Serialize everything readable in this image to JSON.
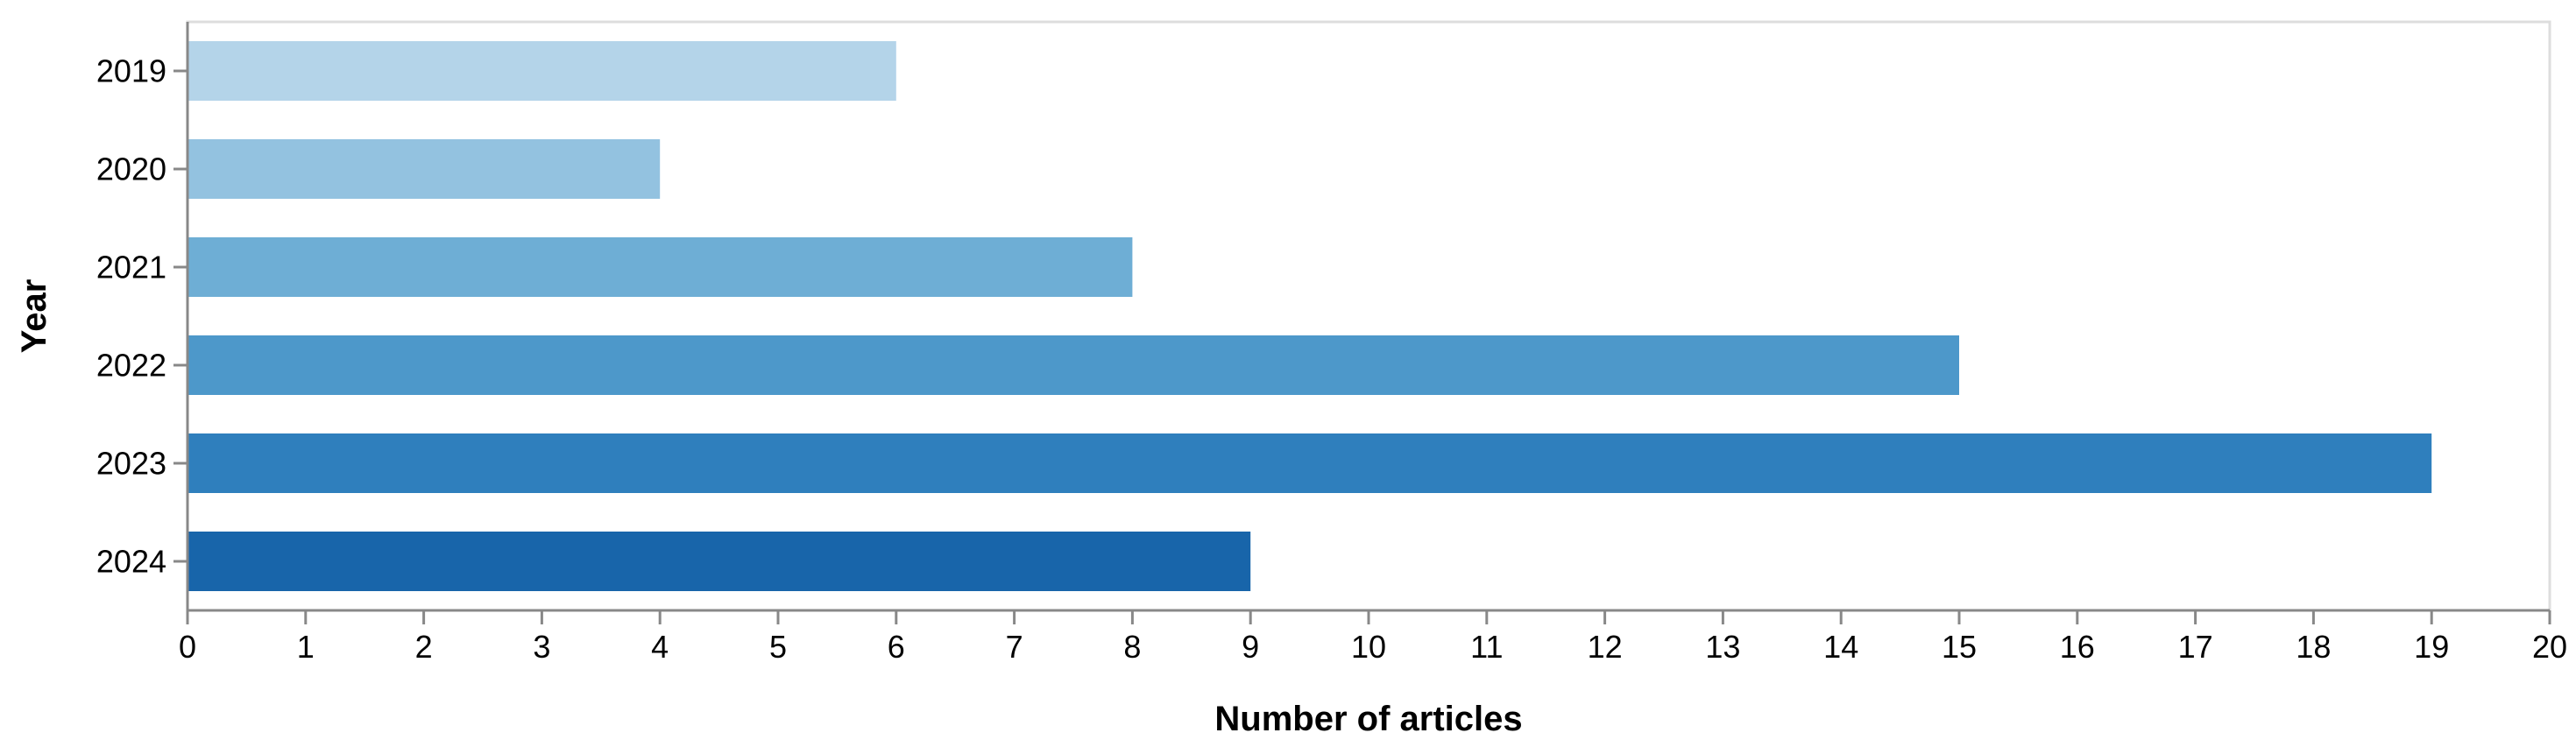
{
  "chart_data": {
    "type": "bar",
    "orientation": "horizontal",
    "categories": [
      "2019",
      "2020",
      "2021",
      "2022",
      "2023",
      "2024"
    ],
    "values": [
      6,
      4,
      8,
      15,
      19,
      9
    ],
    "colors": [
      "#b4d4e9",
      "#93c2e0",
      "#6eaed5",
      "#4d98ca",
      "#2f7fbd",
      "#1865aa"
    ],
    "xlabel": "Number of articles",
    "ylabel": "Year",
    "xlim": [
      0,
      20
    ],
    "xticks": [
      "0",
      "1",
      "2",
      "3",
      "4",
      "5",
      "6",
      "7",
      "8",
      "9",
      "10",
      "11",
      "12",
      "13",
      "14",
      "15",
      "16",
      "17",
      "18",
      "19",
      "20"
    ],
    "grid": false,
    "legend": "none"
  }
}
